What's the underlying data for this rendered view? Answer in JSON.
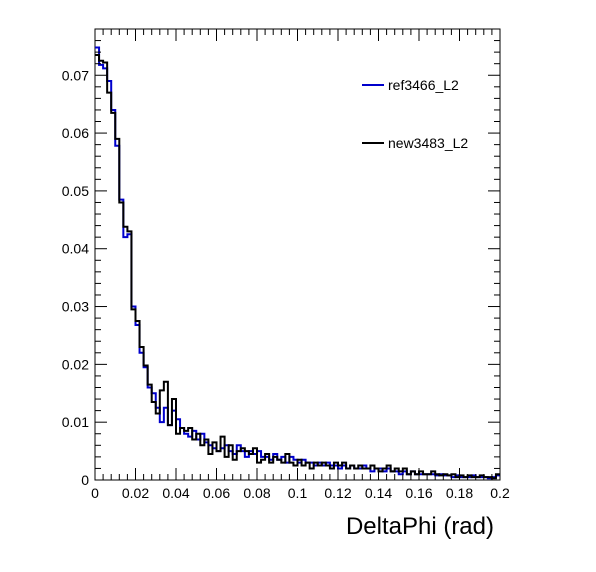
{
  "chart_data": {
    "type": "line",
    "title": "",
    "xlabel": "DeltaPhi (rad)",
    "ylabel": "",
    "xlim": [
      0,
      0.2
    ],
    "ylim": [
      0,
      0.078
    ],
    "grid": false,
    "legend_position": "top-right",
    "x_ticks": [
      {
        "value": 0,
        "label": "0"
      },
      {
        "value": 0.02,
        "label": "0.02"
      },
      {
        "value": 0.04,
        "label": "0.04"
      },
      {
        "value": 0.06,
        "label": "0.06"
      },
      {
        "value": 0.08,
        "label": "0.08"
      },
      {
        "value": 0.1,
        "label": "0.1"
      },
      {
        "value": 0.12,
        "label": "0.12"
      },
      {
        "value": 0.14,
        "label": "0.14"
      },
      {
        "value": 0.16,
        "label": "0.16"
      },
      {
        "value": 0.18,
        "label": "0.18"
      },
      {
        "value": 0.2,
        "label": "0.2"
      }
    ],
    "y_ticks": [
      {
        "value": 0,
        "label": "0"
      },
      {
        "value": 0.01,
        "label": "0.01"
      },
      {
        "value": 0.02,
        "label": "0.02"
      },
      {
        "value": 0.03,
        "label": "0.03"
      },
      {
        "value": 0.04,
        "label": "0.04"
      },
      {
        "value": 0.05,
        "label": "0.05"
      },
      {
        "value": 0.06,
        "label": "0.06"
      },
      {
        "value": 0.07,
        "label": "0.07"
      }
    ],
    "bin_width": 0.002,
    "series": [
      {
        "name": "ref3466_L2",
        "color": "#0000cc",
        "values": [
          0.0748,
          0.0718,
          0.0712,
          0.069,
          0.064,
          0.0578,
          0.0485,
          0.042,
          0.0425,
          0.03,
          0.0268,
          0.022,
          0.0195,
          0.016,
          0.015,
          0.0125,
          0.01,
          0.0125,
          0.0095,
          0.012,
          0.0105,
          0.009,
          0.008,
          0.0075,
          0.0085,
          0.007,
          0.008,
          0.0065,
          0.006,
          0.0055,
          0.005,
          0.0055,
          0.006,
          0.005,
          0.0045,
          0.006,
          0.005,
          0.004,
          0.005,
          0.0045,
          0.005,
          0.004,
          0.004,
          0.0035,
          0.0045,
          0.0035,
          0.004,
          0.003,
          0.004,
          0.0035,
          0.003,
          0.0035,
          0.003,
          0.003,
          0.0025,
          0.003,
          0.0025,
          0.003,
          0.0025,
          0.0025,
          0.002,
          0.0025,
          0.002,
          0.0025,
          0.002,
          0.002,
          0.0025,
          0.002,
          0.0015,
          0.002,
          0.002,
          0.0015,
          0.002,
          0.0015,
          0.0015,
          0.001,
          0.0015,
          0.001,
          0.0015,
          0.001,
          0.001,
          0.001,
          0.001,
          0.001,
          0.0008,
          0.001,
          0.0008,
          0.0008,
          0.0005,
          0.0008,
          0.0005,
          0.0005,
          0.0005,
          0.0008,
          0.0005,
          0.0005,
          0.0005,
          0.0003,
          0.0005,
          0.0008
        ]
      },
      {
        "name": "new3483_L2",
        "color": "#000000",
        "values": [
          0.0735,
          0.0725,
          0.0722,
          0.067,
          0.0635,
          0.059,
          0.048,
          0.0438,
          0.043,
          0.0295,
          0.0275,
          0.023,
          0.0198,
          0.0165,
          0.0135,
          0.0115,
          0.0155,
          0.017,
          0.0095,
          0.014,
          0.008,
          0.009,
          0.0085,
          0.009,
          0.007,
          0.008,
          0.006,
          0.007,
          0.0045,
          0.0065,
          0.005,
          0.0075,
          0.004,
          0.006,
          0.0035,
          0.005,
          0.0055,
          0.005,
          0.0045,
          0.0055,
          0.003,
          0.0035,
          0.0045,
          0.003,
          0.004,
          0.0035,
          0.003,
          0.0045,
          0.003,
          0.0025,
          0.0035,
          0.0025,
          0.003,
          0.002,
          0.003,
          0.0025,
          0.003,
          0.0025,
          0.002,
          0.003,
          0.0025,
          0.003,
          0.002,
          0.0025,
          0.002,
          0.0025,
          0.002,
          0.002,
          0.0025,
          0.002,
          0.0015,
          0.002,
          0.0025,
          0.0015,
          0.002,
          0.0015,
          0.002,
          0.001,
          0.0015,
          0.001,
          0.0015,
          0.001,
          0.001,
          0.0015,
          0.001,
          0.0008,
          0.001,
          0.0008,
          0.001,
          0.0005,
          0.0008,
          0.0005,
          0.0008,
          0.0005,
          0.0005,
          0.0008,
          0.0005,
          0.0005,
          0.0003,
          0.001
        ]
      }
    ]
  }
}
